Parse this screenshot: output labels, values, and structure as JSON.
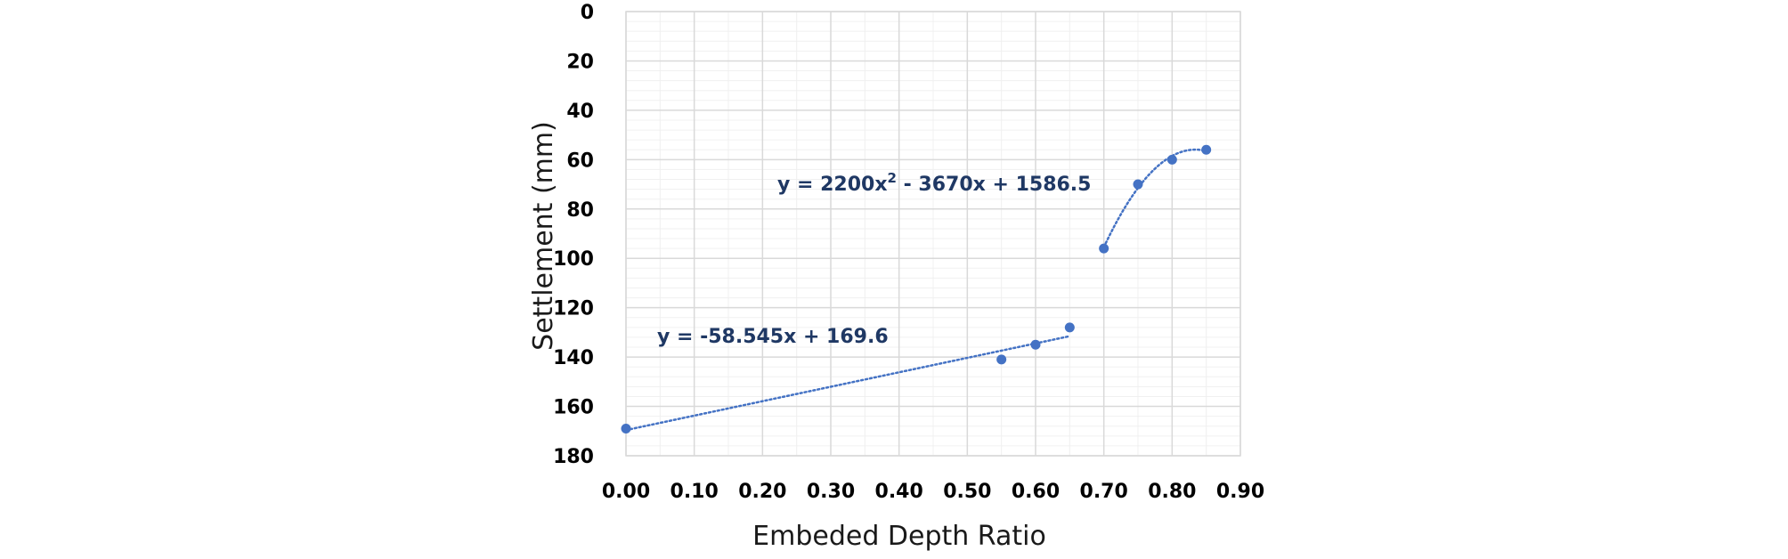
{
  "chart_data": {
    "type": "scatter",
    "title": "",
    "xlabel": "Embeded Depth Ratio",
    "ylabel": "Settlement (mm)",
    "xlim": [
      0,
      0.9
    ],
    "ylim": [
      0,
      180
    ],
    "y_axis_inverted": true,
    "x_ticks": [
      "0.00",
      "0.10",
      "0.20",
      "0.30",
      "0.40",
      "0.50",
      "0.60",
      "0.70",
      "0.80",
      "0.90"
    ],
    "y_ticks": [
      "0",
      "20",
      "40",
      "60",
      "80",
      "100",
      "120",
      "140",
      "160",
      "180"
    ],
    "grid": true,
    "legend": "none",
    "colors": {
      "points": "#4472c4",
      "trendline": "#4472c4",
      "equation": "#1f3864",
      "grid_major": "#d9d9d9",
      "grid_minor": "#f0f0f0"
    },
    "series": [
      {
        "points": [
          {
            "x": 0.0,
            "y": 169
          },
          {
            "x": 0.55,
            "y": 141
          },
          {
            "x": 0.6,
            "y": 135
          },
          {
            "x": 0.65,
            "y": 128
          },
          {
            "x": 0.7,
            "y": 96
          },
          {
            "x": 0.75,
            "y": 70
          },
          {
            "x": 0.8,
            "y": 60
          },
          {
            "x": 0.85,
            "y": 56
          }
        ]
      }
    ],
    "trendlines": [
      {
        "type": "linear",
        "x_range": [
          0.0,
          0.65
        ],
        "coefficients": [
          -58.545,
          169.6
        ],
        "equation": {
          "pre": "y = -58.545x + 169.6",
          "sup": "",
          "post": ""
        }
      },
      {
        "type": "polynomial",
        "x_range": [
          0.7,
          0.85
        ],
        "coefficients": [
          2200,
          -3670,
          1586.5
        ],
        "equation": {
          "pre": "y = 2200x",
          "sup": "2",
          "post": " - 3670x + 1586.5"
        }
      }
    ]
  }
}
